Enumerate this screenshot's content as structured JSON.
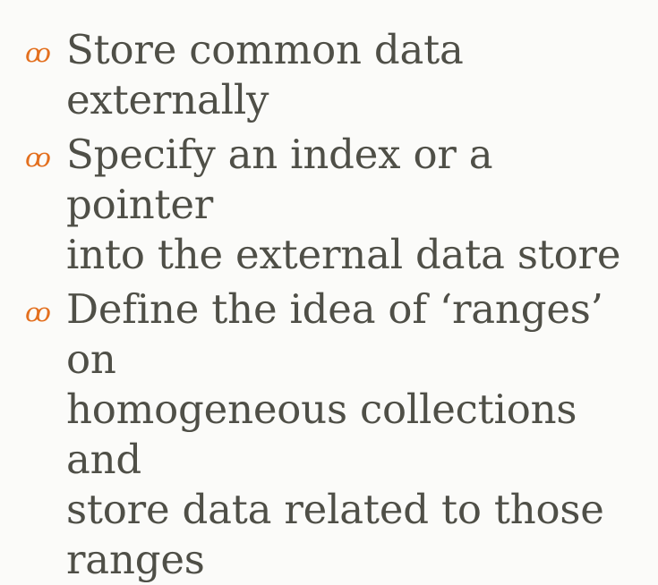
{
  "bullets": [
    {
      "icon": "swirl-bullet-icon",
      "icon_glyph": "ꝏ",
      "text": "Store common data externally"
    },
    {
      "icon": "swirl-bullet-icon",
      "icon_glyph": "ꝏ",
      "text": "Specify an index or a pointer\ninto the external data store"
    },
    {
      "icon": "swirl-bullet-icon",
      "icon_glyph": "ꝏ",
      "text": "Define the idea of ‘ranges’ on\nhomogeneous collections and\nstore data related to those\nranges"
    }
  ],
  "colors": {
    "background": "#fbfbf9",
    "text": "#4f4f47",
    "bullet": "#e36f1e"
  }
}
